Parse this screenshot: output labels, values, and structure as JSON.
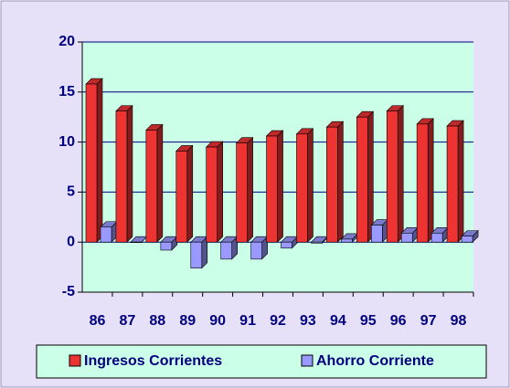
{
  "chart_data": {
    "type": "bar3d",
    "categories": [
      "86",
      "87",
      "88",
      "89",
      "90",
      "91",
      "92",
      "93",
      "94",
      "95",
      "96",
      "97",
      "98"
    ],
    "series": [
      {
        "name": "Ingresos Corrientes",
        "color": "#ee3333",
        "values": [
          15.8,
          13.1,
          11.2,
          9.1,
          9.5,
          9.9,
          10.6,
          10.8,
          11.5,
          12.5,
          13.1,
          11.8,
          11.6
        ]
      },
      {
        "name": "Ahorro Corriente",
        "color": "#9999ff",
        "values": [
          1.5,
          0,
          -0.8,
          -2.6,
          -1.7,
          -1.7,
          -0.6,
          -0.1,
          0.3,
          1.7,
          0.9,
          0.9,
          0.6
        ]
      }
    ],
    "ylim": [
      -5,
      20
    ],
    "yticks": [
      -5,
      0,
      5,
      10,
      15,
      20
    ],
    "grid": true,
    "legend": "bottom"
  }
}
